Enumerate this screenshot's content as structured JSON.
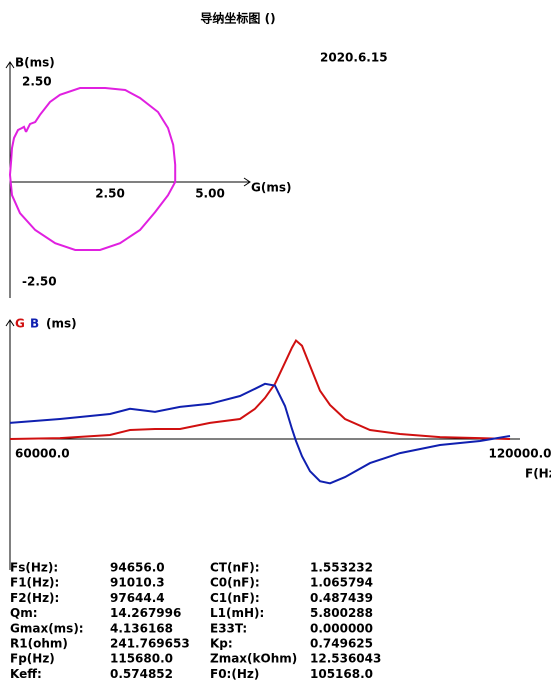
{
  "header": {
    "title": "导纳坐标图 ()",
    "date": "2020.6.15"
  },
  "chart_data": [
    {
      "type": "line",
      "x_label": "G(ms)",
      "y_label": "B(ms)",
      "x": [
        0.4,
        0.35,
        0.3,
        0.2,
        0.1,
        0.05,
        0.03,
        0,
        0.05,
        0.25,
        0.63,
        1.13,
        1.63,
        2.25,
        2.75,
        3.25,
        3.63,
        3.95,
        4.13,
        4.13,
        4.08,
        3.95,
        3.7,
        3.25,
        2.88,
        2.38,
        1.75,
        1.25,
        1,
        0.75,
        0.63,
        0.5,
        0.4
      ],
      "values": [
        1.25,
        1.38,
        1.35,
        1.3,
        1.1,
        0.85,
        0.55,
        0.18,
        -0.33,
        -0.78,
        -1.2,
        -1.53,
        -1.7,
        -1.7,
        -1.53,
        -1.2,
        -0.75,
        -0.33,
        0,
        0.43,
        0.93,
        1.35,
        1.75,
        2.1,
        2.3,
        2.35,
        2.35,
        2.18,
        2,
        1.68,
        1.5,
        1.45,
        1.25
      ],
      "color": "#e020e0",
      "xlim": [
        0,
        6
      ],
      "ylim": [
        -2.9,
        3.0
      ],
      "xticks": [
        {
          "value": 2.5,
          "label": "2.50"
        },
        {
          "value": 5,
          "label": "5.00"
        }
      ],
      "yticks": [
        {
          "value": 2.5,
          "label": "2.50"
        },
        {
          "value": -2.5,
          "label": "-2.50"
        }
      ]
    },
    {
      "type": "line",
      "x_label": "F(Hz)",
      "y_label": "(ms)",
      "x": [
        60000,
        66000,
        72000,
        74400,
        77400,
        80400,
        84000,
        87600,
        89400,
        90600,
        91800,
        93000,
        93840,
        94320,
        95040,
        96000,
        97200,
        98400,
        100200,
        103200,
        106800,
        111600,
        116400,
        120000
      ],
      "series": [
        {
          "name": "G",
          "color": "#d01010",
          "values": [
            0,
            0.04,
            0.17,
            0.38,
            0.42,
            0.42,
            0.68,
            0.84,
            1.27,
            1.73,
            2.32,
            3.21,
            3.84,
            4.14,
            3.92,
            3.08,
            2.03,
            1.43,
            0.84,
            0.38,
            0.21,
            0.08,
            0.04,
            0
          ]
        },
        {
          "name": "B",
          "color": "#1020b0",
          "values": [
            0.68,
            0.84,
            1.05,
            1.27,
            1.14,
            1.35,
            1.48,
            1.81,
            2.11,
            2.32,
            2.24,
            1.39,
            0.42,
            -0.08,
            -0.72,
            -1.35,
            -1.77,
            -1.86,
            -1.6,
            -1.01,
            -0.59,
            -0.25,
            -0.08,
            0.13
          ]
        }
      ],
      "xlim": [
        60000,
        120000
      ],
      "ylim": [
        -5.5,
        5
      ],
      "xticks": [
        {
          "value": 60000,
          "label": "60000.0"
        },
        {
          "value": 120000,
          "label": "120000.0"
        }
      ]
    }
  ],
  "table": {
    "rows": [
      [
        "Fs(Hz):",
        "94656.0",
        "CT(nF):",
        "1.553232"
      ],
      [
        "F1(Hz):",
        "91010.3",
        "C0(nF):",
        "1.065794"
      ],
      [
        "F2(Hz):",
        "97644.4",
        "C1(nF):",
        "0.487439"
      ],
      [
        "Qm:",
        "14.267996",
        "L1(mH):",
        "5.800288"
      ],
      [
        "Gmax(ms):",
        "4.136168",
        "E33T:",
        "0.000000"
      ],
      [
        "R1(ohm)",
        "241.769653",
        "Kp:",
        "0.749625"
      ],
      [
        "Fp(Hz)",
        "115680.0",
        "Zmax(kOhm)",
        "12.536043"
      ],
      [
        "Keff:",
        "0.574852",
        "F0:(Hz)",
        "105168.0"
      ]
    ]
  }
}
